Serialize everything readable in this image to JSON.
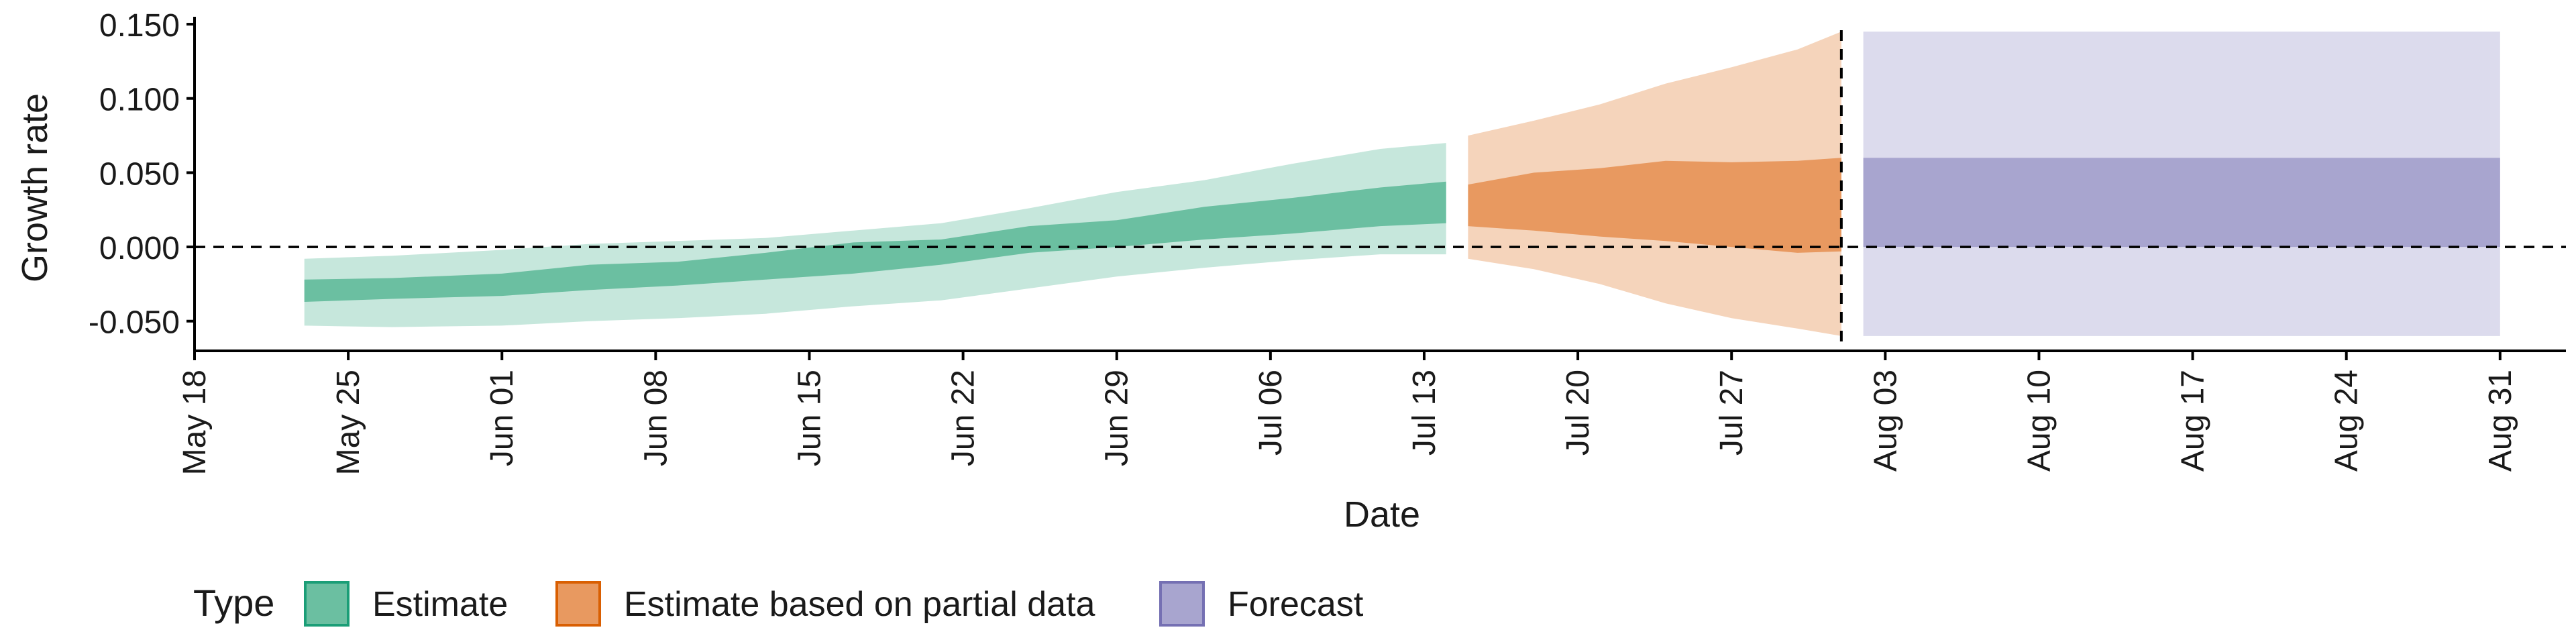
{
  "chart_data": {
    "type": "area",
    "xlabel": "Date",
    "ylabel": "Growth rate",
    "ylim": [
      -0.07,
      0.155
    ],
    "yticks": [
      -0.05,
      0.0,
      0.05,
      0.1,
      0.15
    ],
    "ytick_labels": [
      "-0.050",
      "0.000",
      "0.050",
      "0.100",
      "0.150"
    ],
    "xlim": [
      "2020-05-18",
      "2020-09-03"
    ],
    "xticks": [
      "2020-05-18",
      "2020-05-25",
      "2020-06-01",
      "2020-06-08",
      "2020-06-15",
      "2020-06-22",
      "2020-06-29",
      "2020-07-06",
      "2020-07-13",
      "2020-07-20",
      "2020-07-27",
      "2020-08-03",
      "2020-08-10",
      "2020-08-17",
      "2020-08-24",
      "2020-08-31"
    ],
    "xtick_labels": [
      "May 18",
      "May 25",
      "Jun 01",
      "Jun 08",
      "Jun 15",
      "Jun 22",
      "Jun 29",
      "Jul 06",
      "Jul 13",
      "Jul 20",
      "Jul 27",
      "Aug 03",
      "Aug 10",
      "Aug 17",
      "Aug 24",
      "Aug 31"
    ],
    "hline": 0,
    "vline": "2020-08-01",
    "grid": false,
    "legend": {
      "title": "Type",
      "position": "bottom-left"
    },
    "colors": {
      "Estimate": {
        "inner": "#6bbfa1",
        "outer": "#c6e7dc",
        "border": "#1b9e77"
      },
      "Estimate based on partial data": {
        "inner": "#e89960",
        "outer": "#f5d4bb",
        "border": "#d95f02"
      },
      "Forecast": {
        "inner": "#a8a5cf",
        "outer": "#dcdbed",
        "border": "#7570b3"
      }
    },
    "series": [
      {
        "name": "Estimate",
        "x": [
          "2020-05-23",
          "2020-05-27",
          "2020-06-01",
          "2020-06-05",
          "2020-06-09",
          "2020-06-13",
          "2020-06-17",
          "2020-06-21",
          "2020-06-25",
          "2020-06-29",
          "2020-07-03",
          "2020-07-07",
          "2020-07-11",
          "2020-07-14"
        ],
        "median": [
          -0.03,
          -0.028,
          -0.025,
          -0.02,
          -0.017,
          -0.013,
          -0.008,
          -0.002,
          0.006,
          0.012,
          0.018,
          0.024,
          0.03,
          0.032
        ],
        "inner_lower": [
          -0.037,
          -0.035,
          -0.033,
          -0.029,
          -0.026,
          -0.022,
          -0.018,
          -0.012,
          -0.004,
          0.0,
          0.005,
          0.009,
          0.014,
          0.016
        ],
        "inner_upper": [
          -0.022,
          -0.021,
          -0.018,
          -0.012,
          -0.01,
          -0.004,
          0.003,
          0.005,
          0.014,
          0.018,
          0.027,
          0.033,
          0.04,
          0.044
        ],
        "outer_lower": [
          -0.053,
          -0.054,
          -0.053,
          -0.05,
          -0.048,
          -0.045,
          -0.04,
          -0.036,
          -0.028,
          -0.02,
          -0.014,
          -0.009,
          -0.005,
          -0.005
        ],
        "outer_upper": [
          -0.008,
          -0.006,
          -0.002,
          0.002,
          0.004,
          0.006,
          0.011,
          0.016,
          0.026,
          0.037,
          0.045,
          0.056,
          0.066,
          0.07
        ]
      },
      {
        "name": "Estimate based on partial data",
        "x": [
          "2020-07-15",
          "2020-07-18",
          "2020-07-21",
          "2020-07-24",
          "2020-07-27",
          "2020-07-30",
          "2020-08-01"
        ],
        "median": [
          0.027,
          0.033,
          0.035,
          0.037,
          0.036,
          0.035,
          0.036
        ],
        "inner_lower": [
          0.014,
          0.011,
          0.007,
          0.004,
          0.0,
          -0.004,
          -0.003
        ],
        "inner_upper": [
          0.042,
          0.05,
          0.053,
          0.058,
          0.057,
          0.058,
          0.06
        ],
        "outer_lower": [
          -0.008,
          -0.015,
          -0.025,
          -0.038,
          -0.048,
          -0.055,
          -0.06
        ],
        "outer_upper": [
          0.075,
          0.085,
          0.096,
          0.11,
          0.121,
          0.133,
          0.145
        ]
      },
      {
        "name": "Forecast",
        "x": [
          "2020-08-02",
          "2020-08-31"
        ],
        "median": [
          0.03,
          0.03
        ],
        "inner_lower": [
          0.0,
          0.0
        ],
        "inner_upper": [
          0.06,
          0.06
        ],
        "outer_lower": [
          -0.06,
          -0.06
        ],
        "outer_upper": [
          0.145,
          0.145
        ]
      }
    ]
  }
}
